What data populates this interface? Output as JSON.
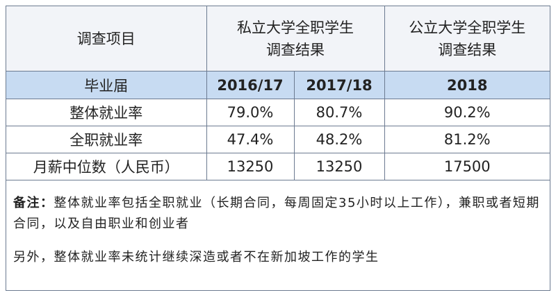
{
  "table": {
    "header": [
      "调查项目",
      [
        "私立大学全职学生",
        "调查结果"
      ],
      [
        "公立大学全职学生",
        "调查结果"
      ]
    ],
    "year_row": [
      "毕业届",
      "2016/17",
      "2017/18",
      "2018"
    ],
    "rows": [
      [
        "整体就业率",
        "79.0%",
        "80.7%",
        "90.2%"
      ],
      [
        "全职就业率",
        "47.4%",
        "48.2%",
        "81.2%"
      ],
      [
        "月薪中位数（人民币）",
        "13250",
        "13250",
        "17500"
      ]
    ]
  },
  "notes": {
    "label": "备注：",
    "text": "整体就业率包括全职就业（长期合同，每周固定35小时以上工作），兼职或者短期合同，以及自由职业和创业者",
    "extra": "另外，整体就业率未统计继续深造或者不在新加坡工作的学生"
  }
}
